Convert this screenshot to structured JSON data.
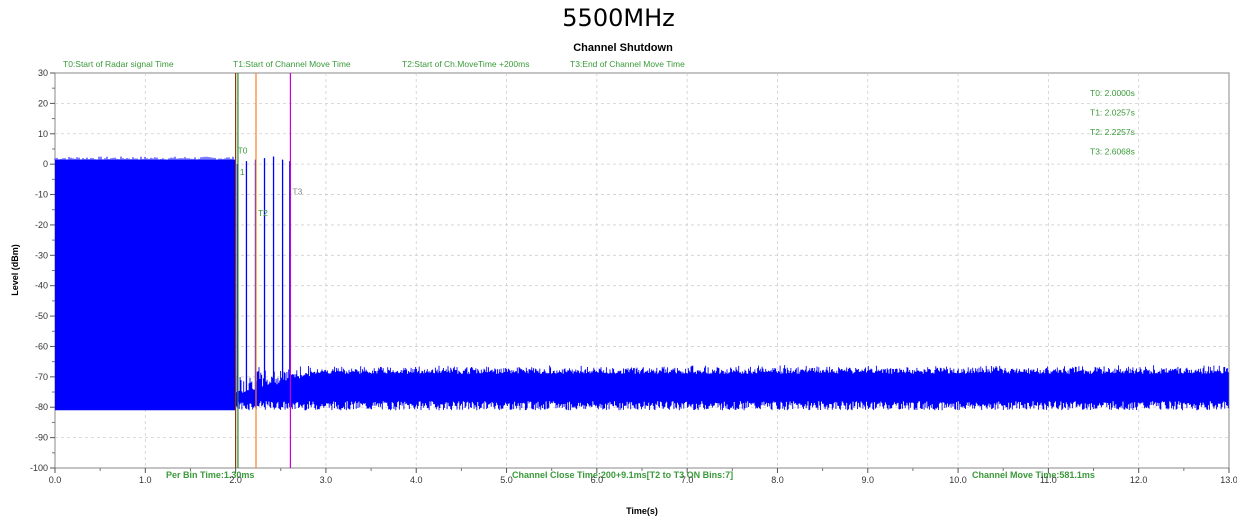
{
  "page_title": "5500MHz",
  "chart_data": {
    "type": "line",
    "title": "Channel Shutdown",
    "xlabel": "Time(s)",
    "ylabel": "Level (dBm)",
    "xlim": [
      0.0,
      13.0
    ],
    "ylim": [
      -100,
      30
    ],
    "x_ticks": [
      "0.0",
      "1.0",
      "2.0",
      "3.0",
      "4.0",
      "5.0",
      "6.0",
      "7.0",
      "8.0",
      "9.0",
      "10.0",
      "11.0",
      "12.0",
      "13.0"
    ],
    "y_ticks": [
      "30",
      "20",
      "10",
      "0",
      "-10",
      "-20",
      "-30",
      "-40",
      "-50",
      "-60",
      "-70",
      "-80",
      "-90",
      "-100"
    ],
    "grid": true,
    "series_color": "#0000ff",
    "radar_burst": {
      "x_start": 0.0,
      "x_end": 2.0,
      "y_low": -81,
      "y_high": 1.5
    },
    "noise_floor": {
      "x_start": 2.0,
      "x_end": 13.0,
      "y_low": -81,
      "y_high": -66
    },
    "channel_spikes": [
      {
        "x": 2.02,
        "y": 0
      },
      {
        "x": 2.12,
        "y": 1
      },
      {
        "x": 2.22,
        "y": 1.5
      },
      {
        "x": 2.32,
        "y": 2
      },
      {
        "x": 2.42,
        "y": 2.5
      },
      {
        "x": 2.52,
        "y": 1.5
      },
      {
        "x": 2.6,
        "y": 1
      }
    ],
    "markers": [
      {
        "id": "T0",
        "x": 2.0,
        "color": "#8b3a00",
        "label": "T0",
        "label_y": 3.5
      },
      {
        "id": "T1",
        "x": 2.0257,
        "color": "#2e8b2e",
        "label": "1",
        "label_y": -3.5
      },
      {
        "id": "T2",
        "x": 2.2257,
        "color": "#ff7f27",
        "label": "T2",
        "label_y": -17
      },
      {
        "id": "T3",
        "x": 2.6068,
        "color": "#cc00cc",
        "label": "T3",
        "label_y": -10
      }
    ],
    "legend_top": [
      "T0:Start of Radar signal Time",
      "T1:Start of Channel Move Time",
      "T2:Start of Ch.MoveTime +200ms",
      "T3:End of Channel Move Time"
    ],
    "marker_values": [
      "T0: 2.0000s",
      "T1: 2.0257s",
      "T2: 2.2257s",
      "T3: 2.6068s"
    ],
    "footer_notes": [
      "Per Bin Time:1.30ms",
      "Channel Close Time:200+9.1ms[T2 to T3 ON Bins:7]",
      "Channel Move Time:581.1ms"
    ],
    "text_color": "#3a9a3a"
  }
}
